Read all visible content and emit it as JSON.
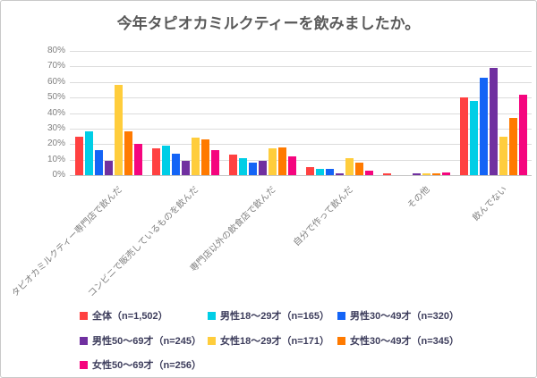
{
  "title": "今年タピオカミルクティーを飲みましたか。",
  "chart_data": {
    "type": "bar",
    "title": "今年タピオカミルクティーを飲みましたか。",
    "categories": [
      "タピオカミルクティー専門店で飲んだ",
      "コンビニで販売しているものを飲んだ",
      "専門店以外の飲食店で飲んだ",
      "自分で作って飲んだ",
      "その他",
      "飲んでない"
    ],
    "series": [
      {
        "name": "全体（n=1,502）",
        "color": "#ff4141",
        "values": [
          25,
          17,
          13,
          5,
          1,
          50
        ]
      },
      {
        "name": "男性18～29才（n=165）",
        "color": "#00cee6",
        "values": [
          28,
          19,
          11,
          4,
          0,
          48
        ]
      },
      {
        "name": "男性30～49才（n=320）",
        "color": "#1464f6",
        "values": [
          16,
          14,
          8,
          4,
          0,
          63
        ]
      },
      {
        "name": "男性50～69才（n=245）",
        "color": "#7030a0",
        "values": [
          9,
          9,
          9,
          1,
          1,
          69
        ]
      },
      {
        "name": "女性18～29才（n=171）",
        "color": "#ffcd3c",
        "values": [
          58,
          24,
          17,
          11,
          1,
          25
        ]
      },
      {
        "name": "女性30～49才（n=345）",
        "color": "#ff7a00",
        "values": [
          28,
          23,
          18,
          8,
          1,
          37
        ]
      },
      {
        "name": "女性50～69才（n=256）",
        "color": "#f5057e",
        "values": [
          20,
          16,
          12,
          3,
          2,
          52
        ]
      }
    ],
    "y_ticks": [
      "0%",
      "10%",
      "20%",
      "30%",
      "40%",
      "50%",
      "60%",
      "70%",
      "80%"
    ],
    "ylim": [
      0,
      80
    ],
    "xlabel": "",
    "ylabel": "",
    "grid": true,
    "legend_position": "bottom"
  }
}
